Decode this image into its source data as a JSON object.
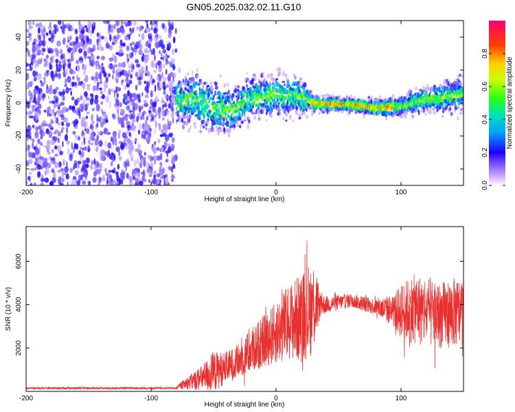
{
  "figure": {
    "title": "GN05.2025.032.02.11.G10"
  },
  "colors": {
    "snr_line": "#e8302e",
    "axis": "#000000",
    "background": "#ffffff"
  },
  "chart_data": [
    {
      "type": "heatmap",
      "xlabel": "Height of straight line (km)",
      "ylabel": "Frequency (Hz)",
      "xlim": [
        -200,
        150
      ],
      "ylim": [
        -50,
        50
      ],
      "x_ticks": [
        -200,
        -100,
        0,
        100
      ],
      "x_tick_labels": [
        "-200",
        "-100",
        "0",
        "100"
      ],
      "y_ticks": [
        -40,
        -20,
        0,
        20,
        40
      ],
      "y_tick_labels": [
        "-40",
        "-20",
        "0",
        "20",
        "40"
      ],
      "noise_region_x": [
        -200,
        -80
      ],
      "signal_ridge": [
        {
          "x": -80,
          "freq": 2,
          "spread": 14
        },
        {
          "x": -65,
          "freq": 2,
          "spread": 16
        },
        {
          "x": -50,
          "freq": -3,
          "spread": 16
        },
        {
          "x": -35,
          "freq": -5,
          "spread": 14
        },
        {
          "x": -20,
          "freq": 3,
          "spread": 12
        },
        {
          "x": 0,
          "freq": 5,
          "spread": 12
        },
        {
          "x": 20,
          "freq": 4,
          "spread": 12
        },
        {
          "x": 30,
          "freq": 0,
          "spread": 5
        },
        {
          "x": 60,
          "freq": -1,
          "spread": 4
        },
        {
          "x": 80,
          "freq": -3,
          "spread": 5
        },
        {
          "x": 100,
          "freq": -2,
          "spread": 6
        },
        {
          "x": 120,
          "freq": 2,
          "spread": 8
        },
        {
          "x": 150,
          "freq": 5,
          "spread": 10
        }
      ],
      "colorbar": {
        "label": "Normalized spectral amplitude",
        "range": [
          0,
          1
        ],
        "ticks": [
          0.0,
          0.2,
          0.4,
          0.6,
          0.8
        ],
        "tick_labels": [
          "0.0",
          "0.2",
          "0.4",
          "0.6",
          "0.8"
        ]
      }
    },
    {
      "type": "line",
      "xlabel": "Height of straight line (km)",
      "ylabel": "SNR (10 * v/v)",
      "xlim": [
        -200,
        150
      ],
      "ylim": [
        0,
        7600
      ],
      "x_ticks": [
        -200,
        -100,
        0,
        100
      ],
      "x_tick_labels": [
        "-200",
        "-100",
        "0",
        "100"
      ],
      "y_ticks": [
        2000,
        4000,
        6000
      ],
      "y_tick_labels": [
        "2000",
        "4000",
        "6000"
      ],
      "envelope": {
        "x": [
          -200,
          -80,
          -75,
          -60,
          -50,
          -40,
          -30,
          -20,
          -10,
          0,
          10,
          20,
          30,
          35,
          40,
          60,
          80,
          95,
          100,
          110,
          120,
          130,
          140,
          150
        ],
        "mean": [
          150,
          150,
          300,
          600,
          900,
          1100,
          1400,
          1900,
          2300,
          2700,
          3200,
          3400,
          3900,
          4000,
          4000,
          4200,
          3900,
          3700,
          3700,
          3800,
          3700,
          3500,
          3600,
          3700
        ],
        "amp": [
          60,
          60,
          250,
          700,
          1200,
          900,
          1000,
          1300,
          1500,
          1800,
          2200,
          2600,
          2800,
          800,
          500,
          400,
          500,
          1000,
          1600,
          2000,
          2100,
          1900,
          2000,
          2000
        ]
      }
    }
  ]
}
